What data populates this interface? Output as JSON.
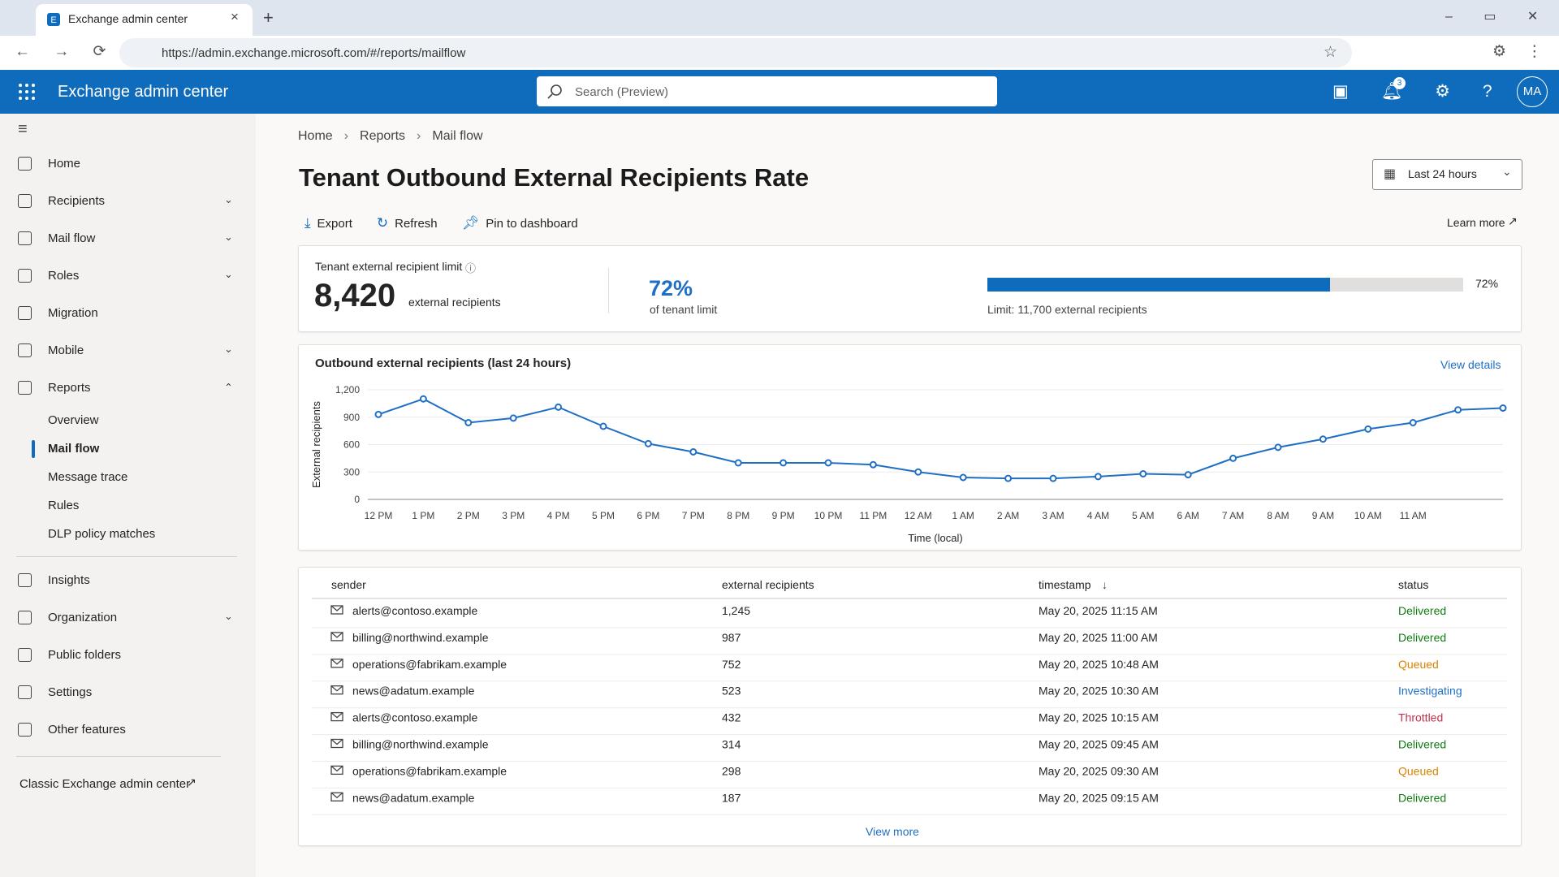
{
  "browser": {
    "tab_title": "Exchange admin center",
    "url": "https://admin.exchange.microsoft.com/#/reports/mailflow"
  },
  "header": {
    "app_name": "Exchange admin center",
    "search_placeholder": "Search (Preview)",
    "notification_count": "3",
    "avatar": "MA"
  },
  "nav": {
    "items": [
      {
        "label": "Home"
      },
      {
        "label": "Recipients",
        "expand": "down"
      },
      {
        "label": "Mail flow",
        "expand": "down"
      },
      {
        "label": "Roles",
        "expand": "down"
      },
      {
        "label": "Migration"
      },
      {
        "label": "Mobile",
        "expand": "down"
      },
      {
        "label": "Reports",
        "expand": "up",
        "children": [
          "Overview",
          "Mail flow",
          "Message trace",
          "Rules",
          "DLP policy matches"
        ],
        "active_child": 1
      },
      {
        "label": "Insights"
      },
      {
        "label": "Organization",
        "expand": "down"
      },
      {
        "label": "Public folders"
      },
      {
        "label": "Settings"
      },
      {
        "label": "Other features"
      }
    ],
    "classic_link": "Classic Exchange admin center"
  },
  "breadcrumb": [
    "Home",
    "Reports",
    "Mail flow"
  ],
  "page": {
    "title": "Tenant Outbound External Recipients Rate",
    "date_range": "Last 24 hours",
    "actions": [
      "Export",
      "Refresh",
      "Pin to dashboard"
    ],
    "learn_more": "Learn more"
  },
  "summary": {
    "label": "Tenant external recipient limit",
    "count": "8,420",
    "count_unit": "external recipients",
    "percent": 72,
    "percent_label": "72%",
    "percent_caption": "of tenant limit",
    "limit_text": "Limit: 11,700 external recipients"
  },
  "chart": {
    "type": "line",
    "title": "Outbound external recipients (last 24 hours)",
    "link": "View details",
    "x_label": "Time (local)",
    "y_label": "External recipients",
    "categories": [
      "12 PM",
      "1 PM",
      "2 PM",
      "3 PM",
      "4 PM",
      "5 PM",
      "6 PM",
      "7 PM",
      "8 PM",
      "9 PM",
      "10 PM",
      "11 PM",
      "12 AM",
      "1 AM",
      "2 AM",
      "3 AM",
      "4 AM",
      "5 AM",
      "6 AM",
      "7 AM",
      "8 AM",
      "9 AM",
      "10 AM",
      "11 AM",
      null,
      null
    ],
    "values": [
      930,
      1100,
      840,
      890,
      1010,
      800,
      610,
      520,
      400,
      400,
      400,
      380,
      300,
      240,
      230,
      230,
      250,
      280,
      270,
      450,
      570,
      660,
      770,
      840,
      980,
      1000
    ],
    "color": "#1f6fc5",
    "ylim": [
      0,
      1200
    ],
    "yticks": [
      0,
      300,
      600,
      900,
      {
        "value": 1200,
        "label": "1,200"
      }
    ],
    "grid": true
  },
  "table": {
    "columns": [
      "sender",
      "external recipients",
      "timestamp",
      "status"
    ],
    "sort_column": 2,
    "rows": [
      [
        "alerts@contoso.example",
        "1,245",
        "May 20, 2025 11:15 AM",
        "Delivered"
      ],
      [
        "billing@northwind.example",
        "987",
        "May 20, 2025 11:00 AM",
        "Delivered"
      ],
      [
        "operations@fabrikam.example",
        "752",
        "May 20, 2025 10:48 AM",
        "Queued"
      ],
      [
        "news@adatum.example",
        "523",
        "May 20, 2025 10:30 AM",
        "Investigating"
      ],
      [
        "alerts@contoso.example",
        "432",
        "May 20, 2025 10:15 AM",
        "Throttled"
      ],
      [
        "billing@northwind.example",
        "314",
        "May 20, 2025 09:45 AM",
        "Delivered"
      ],
      [
        "operations@fabrikam.example",
        "298",
        "May 20, 2025 09:30 AM",
        "Queued"
      ],
      [
        "news@adatum.example",
        "187",
        "May 20, 2025 09:15 AM",
        "Delivered"
      ]
    ],
    "status_colors": {
      "Delivered": "#107c10",
      "Queued": "#d98300",
      "Investigating": "#1f6fc5",
      "Throttled": "#c4314b"
    },
    "view_more": "View more"
  }
}
